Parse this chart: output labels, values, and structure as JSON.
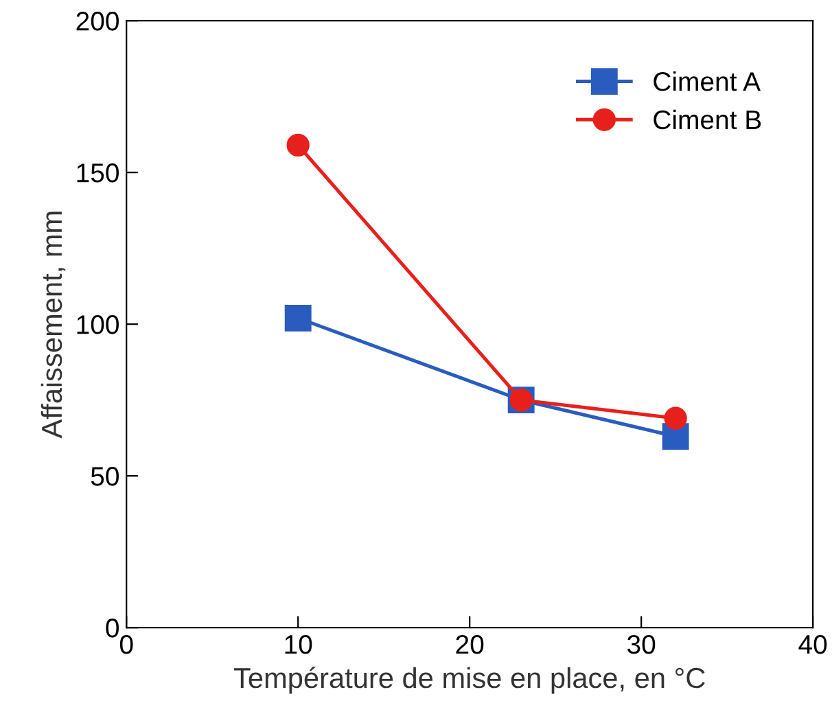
{
  "chart_data": {
    "type": "line",
    "xlabel": "Température de mise en place, en °C",
    "ylabel": "Affaissement, mm",
    "series": [
      {
        "name": "Ciment A",
        "color": "#2a5cc0",
        "marker": "square",
        "x": [
          10,
          23,
          32
        ],
        "values": [
          102,
          75,
          63
        ]
      },
      {
        "name": "Ciment B",
        "color": "#e8201c",
        "marker": "circle",
        "x": [
          10,
          23,
          32
        ],
        "values": [
          159,
          75,
          69
        ]
      }
    ],
    "xlim": [
      0,
      40
    ],
    "xticks": [
      0,
      10,
      20,
      30,
      40
    ],
    "ylim": [
      0,
      200
    ],
    "yticks": [
      0,
      50,
      100,
      150,
      200
    ],
    "grid": false,
    "legend": "top right",
    "line_style": "solid"
  }
}
